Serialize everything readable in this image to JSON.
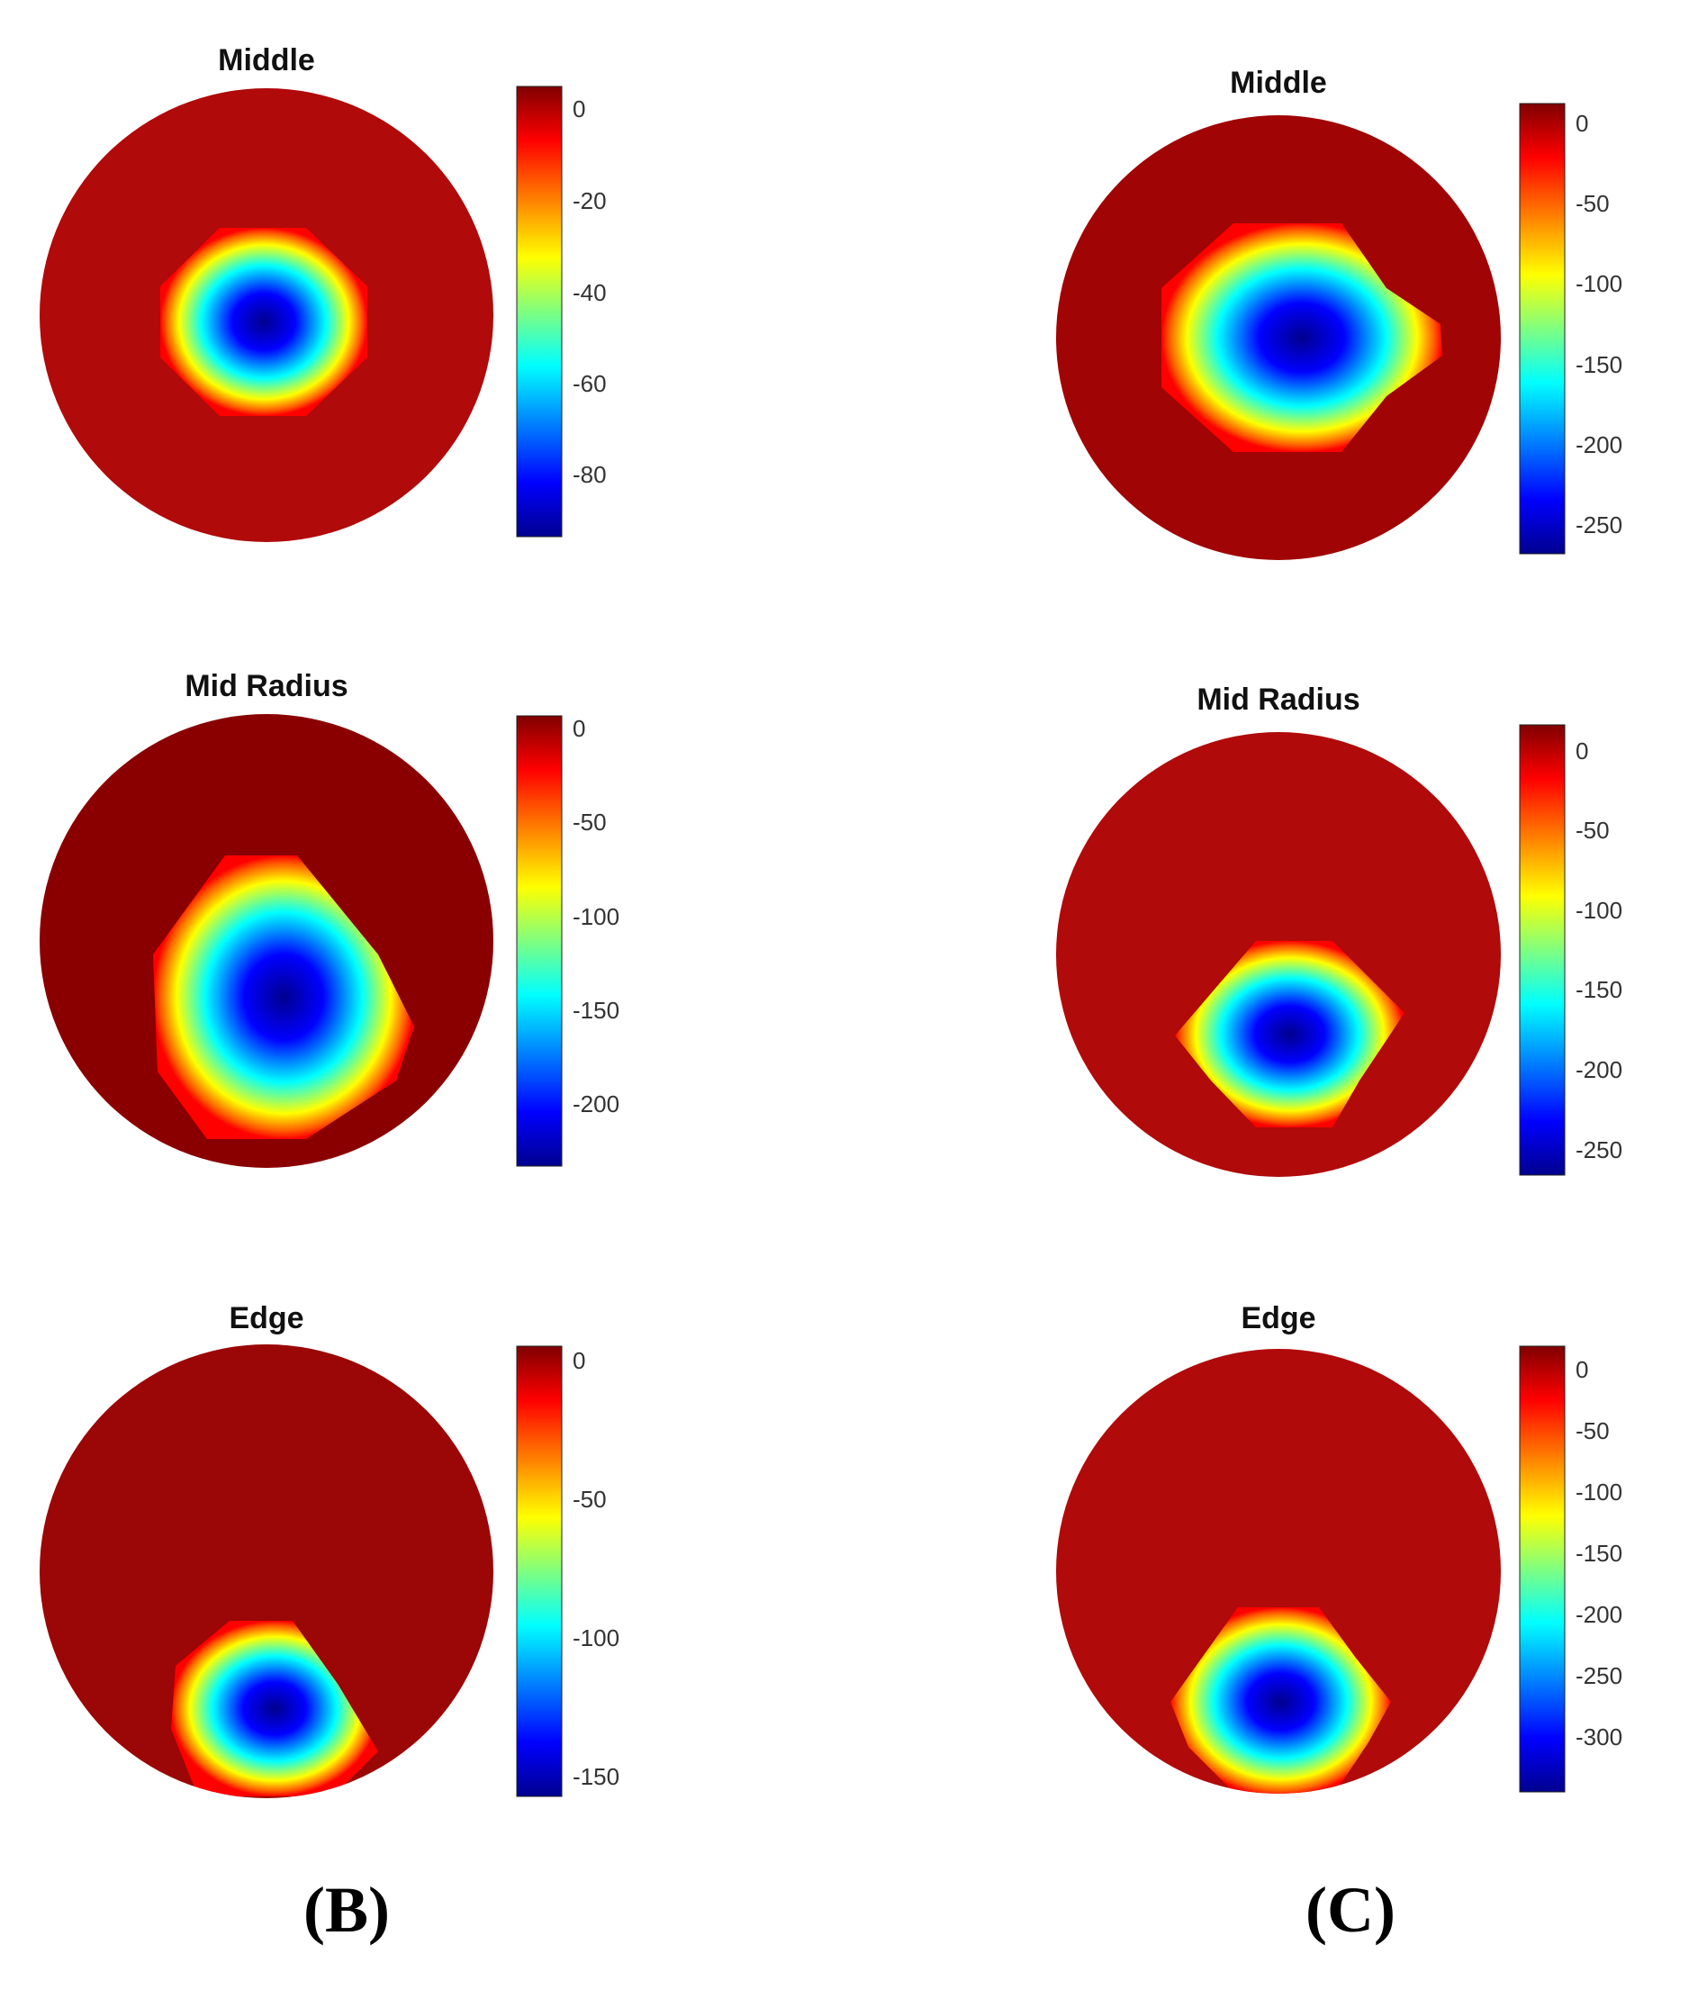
{
  "colors": {
    "background": "#ffffff",
    "jet_stops": [
      "#00008f",
      "#0000ff",
      "#00ffff",
      "#ffff00",
      "#ff0000",
      "#800000"
    ],
    "outer_field": "#b00a0a"
  },
  "chart_data": [
    {
      "type": "heatmap",
      "column": "B",
      "title": "Middle",
      "colorbar_ticks": [
        0,
        -20,
        -40,
        -60,
        -80
      ],
      "colorbar_range": [
        -93,
        4
      ]
    },
    {
      "type": "heatmap",
      "column": "B",
      "title": "Mid Radius",
      "colorbar_ticks": [
        0,
        -50,
        -100,
        -150,
        -200
      ],
      "colorbar_range": [
        -235,
        4
      ]
    },
    {
      "type": "heatmap",
      "column": "B",
      "title": "Edge",
      "colorbar_ticks": [
        0,
        -50,
        -100,
        -150
      ],
      "colorbar_range": [
        -158,
        4
      ]
    },
    {
      "type": "heatmap",
      "column": "C",
      "title": "Middle",
      "colorbar_ticks": [
        0,
        -50,
        -100,
        -150,
        -200,
        -250
      ],
      "colorbar_range": [
        -272,
        8
      ]
    },
    {
      "type": "heatmap",
      "column": "C",
      "title": "Mid Radius",
      "colorbar_ticks": [
        0,
        -50,
        -100,
        -150,
        -200,
        -250
      ],
      "colorbar_range": [
        -268,
        14
      ]
    },
    {
      "type": "heatmap",
      "column": "C",
      "title": "Edge",
      "colorbar_ticks": [
        0,
        -50,
        -100,
        -150,
        -200,
        -250,
        -300
      ],
      "colorbar_range": [
        -343,
        8
      ]
    }
  ],
  "column_labels": [
    "(B)",
    "(C)"
  ]
}
